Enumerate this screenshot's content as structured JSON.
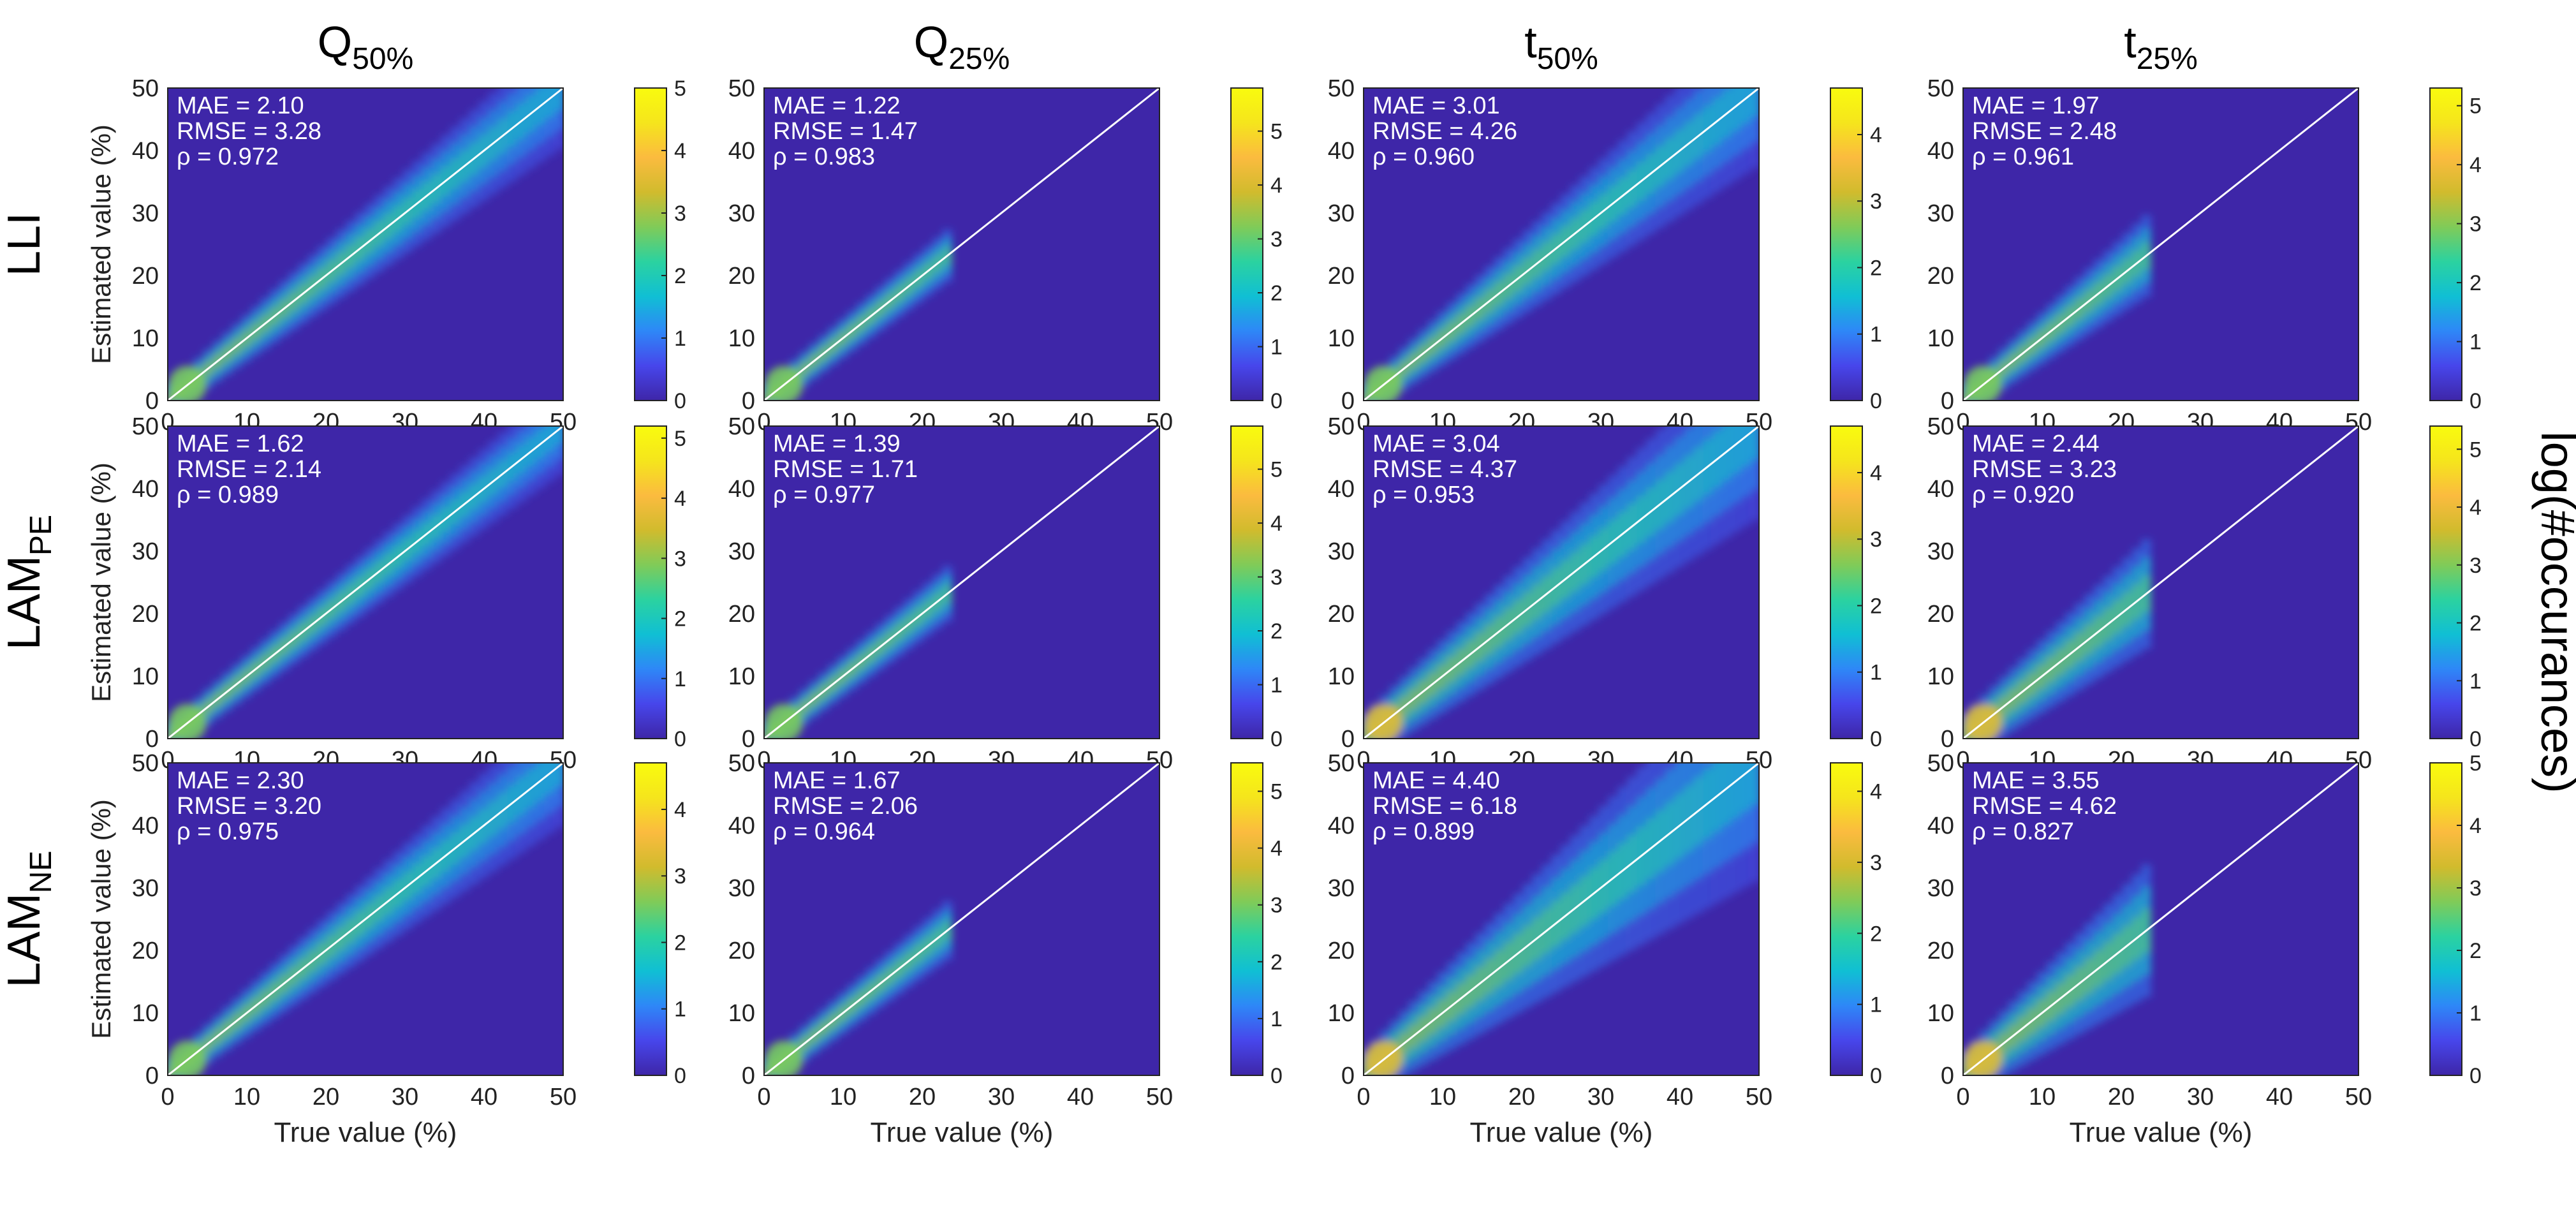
{
  "chart_data": {
    "type": "heatmap",
    "column_titles": [
      {
        "base": "Q",
        "sub": "50%"
      },
      {
        "base": "Q",
        "sub": "25%"
      },
      {
        "base": "t",
        "sub": "50%"
      },
      {
        "base": "t",
        "sub": "25%"
      }
    ],
    "row_titles": [
      {
        "base": "LLI",
        "sub": ""
      },
      {
        "base": "LAM",
        "sub": "PE"
      },
      {
        "base": "LAM",
        "sub": "NE"
      }
    ],
    "xlabel": "True value (%)",
    "ylabel": "Estimated value (%)",
    "colorbar_label": "log(#occurances)",
    "xlim": [
      0,
      50
    ],
    "ylim": [
      0,
      50
    ],
    "ticks": [
      0,
      10,
      20,
      30,
      40,
      50
    ],
    "colormap": [
      "#3e26a8",
      "#4746eb",
      "#2e87f7",
      "#10bfd4",
      "#2bd2a0",
      "#80cb58",
      "#d1bb2d",
      "#fbbb3f",
      "#f5e51c",
      "#f9fb0e"
    ],
    "background_color": "#3e26a8",
    "identity_line_color": "#ffffff",
    "panels": [
      {
        "row": 0,
        "col": 0,
        "stats": {
          "mae": "MAE = 2.10",
          "rmse": "RMSE = 3.28",
          "rho": "ρ = 0.972"
        },
        "true_max": 50,
        "spread": 0.14,
        "clim": [
          0,
          5
        ],
        "cbar_ticks": [
          0,
          1,
          2,
          3,
          4,
          5
        ]
      },
      {
        "row": 0,
        "col": 1,
        "stats": {
          "mae": "MAE = 1.22",
          "rmse": "RMSE = 1.47",
          "rho": "ρ = 0.983"
        },
        "true_max": 24,
        "spread": 0.08,
        "clim": [
          0,
          5.8
        ],
        "cbar_ticks": [
          0,
          1,
          2,
          3,
          4,
          5
        ]
      },
      {
        "row": 0,
        "col": 2,
        "stats": {
          "mae": "MAE = 3.01",
          "rmse": "RMSE = 4.26",
          "rho": "ρ = 0.960"
        },
        "true_max": 50,
        "spread": 0.2,
        "clim": [
          0,
          4.7
        ],
        "cbar_ticks": [
          0,
          1,
          2,
          3,
          4
        ]
      },
      {
        "row": 0,
        "col": 3,
        "stats": {
          "mae": "MAE = 1.97",
          "rmse": "RMSE = 2.48",
          "rho": "ρ = 0.961"
        },
        "true_max": 24,
        "spread": 0.18,
        "clim": [
          0,
          5.3
        ],
        "cbar_ticks": [
          0,
          1,
          2,
          3,
          4,
          5
        ]
      },
      {
        "row": 1,
        "col": 0,
        "stats": {
          "mae": "MAE = 1.62",
          "rmse": "RMSE = 2.14",
          "rho": "ρ = 0.989"
        },
        "true_max": 50,
        "spread": 0.1,
        "clim": [
          0,
          5.2
        ],
        "cbar_ticks": [
          0,
          1,
          2,
          3,
          4,
          5
        ]
      },
      {
        "row": 1,
        "col": 1,
        "stats": {
          "mae": "MAE = 1.39",
          "rmse": "RMSE = 1.71",
          "rho": "ρ = 0.977"
        },
        "true_max": 24,
        "spread": 0.09,
        "clim": [
          0,
          5.8
        ],
        "cbar_ticks": [
          0,
          1,
          2,
          3,
          4,
          5
        ]
      },
      {
        "row": 1,
        "col": 2,
        "stats": {
          "mae": "MAE = 3.04",
          "rmse": "RMSE = 4.37",
          "rho": "ρ = 0.953"
        },
        "true_max": 50,
        "spread": 0.22,
        "clim": [
          0,
          4.7
        ],
        "cbar_ticks": [
          0,
          1,
          2,
          3,
          4
        ]
      },
      {
        "row": 1,
        "col": 3,
        "stats": {
          "mae": "MAE = 2.44",
          "rmse": "RMSE = 3.23",
          "rho": "ρ = 0.920"
        },
        "true_max": 24,
        "spread": 0.22,
        "clim": [
          0,
          5.4
        ],
        "cbar_ticks": [
          0,
          1,
          2,
          3,
          4,
          5
        ]
      },
      {
        "row": 2,
        "col": 0,
        "stats": {
          "mae": "MAE = 2.30",
          "rmse": "RMSE = 3.20",
          "rho": "ρ = 0.975"
        },
        "true_max": 50,
        "spread": 0.15,
        "clim": [
          0,
          4.7
        ],
        "cbar_ticks": [
          0,
          1,
          2,
          3,
          4
        ]
      },
      {
        "row": 2,
        "col": 1,
        "stats": {
          "mae": "MAE = 1.67",
          "rmse": "RMSE = 2.06",
          "rho": "ρ = 0.964"
        },
        "true_max": 24,
        "spread": 0.1,
        "clim": [
          0,
          5.5
        ],
        "cbar_ticks": [
          0,
          1,
          2,
          3,
          4,
          5
        ]
      },
      {
        "row": 2,
        "col": 2,
        "stats": {
          "mae": "MAE = 4.40",
          "rmse": "RMSE = 6.18",
          "rho": "ρ = 0.899"
        },
        "true_max": 50,
        "spread": 0.3,
        "clim": [
          0,
          4.4
        ],
        "cbar_ticks": [
          0,
          1,
          2,
          3,
          4
        ]
      },
      {
        "row": 2,
        "col": 3,
        "stats": {
          "mae": "MAE = 3.55",
          "rmse": "RMSE = 4.62",
          "rho": "ρ = 0.827"
        },
        "true_max": 24,
        "spread": 0.3,
        "clim": [
          0,
          5
        ],
        "cbar_ticks": [
          0,
          1,
          2,
          3,
          4,
          5
        ]
      }
    ]
  }
}
